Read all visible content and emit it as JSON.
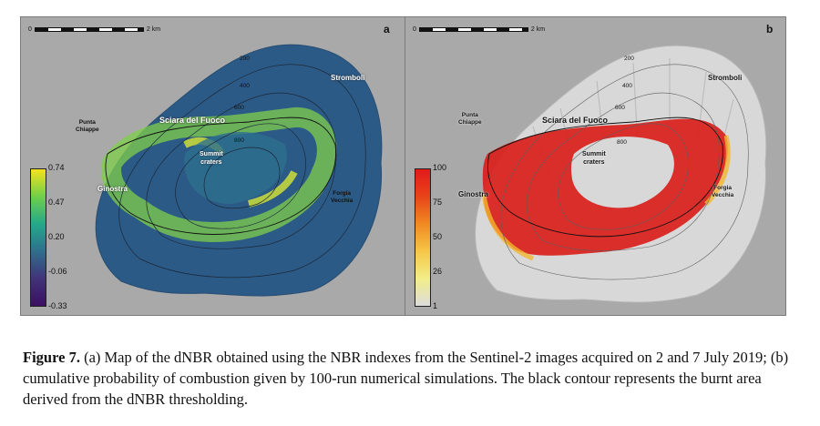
{
  "panel_a": {
    "letter": "a",
    "scale_left": "0",
    "scale_right": "2 km",
    "places": {
      "stromboli": "Stromboli",
      "sciara": "Sciara del Fuoco",
      "punta": "Punta\nChiappe",
      "summit": "Summit\ncraters",
      "ginostra": "Ginostra",
      "forgia": "Forgia\nVecchia"
    },
    "contours": [
      "200",
      "400",
      "600",
      "800"
    ],
    "legend_ticks": [
      "0.74",
      "0.47",
      "0.20",
      "-0.06",
      "-0.33"
    ]
  },
  "panel_b": {
    "letter": "b",
    "scale_left": "0",
    "scale_right": "2 km",
    "places": {
      "stromboli": "Stromboli",
      "sciara": "Sciara del Fuoco",
      "punta": "Punta\nChiappe",
      "summit": "Summit\ncraters",
      "ginostra": "Ginostra",
      "forgia": "Forgia\nVecchia"
    },
    "contours": [
      "200",
      "400",
      "600",
      "800"
    ],
    "legend_ticks": [
      "100",
      "75",
      "50",
      "26",
      "1"
    ]
  },
  "caption": {
    "label": "Figure 7.",
    "text": " (a) Map of the dNBR obtained using the NBR indexes from the Sentinel-2 images acquired on 2 and 7 July 2019; (b) cumulative probability of combustion given by 100-run numerical simulations. The black contour represents the burnt area derived from the dNBR thresholding."
  },
  "colors": {
    "panel_background": "#a9a9a9",
    "dnbr_island": "#2c5a86",
    "burn_high": "#e31a1c",
    "hillshade": "#d8d8d8"
  }
}
